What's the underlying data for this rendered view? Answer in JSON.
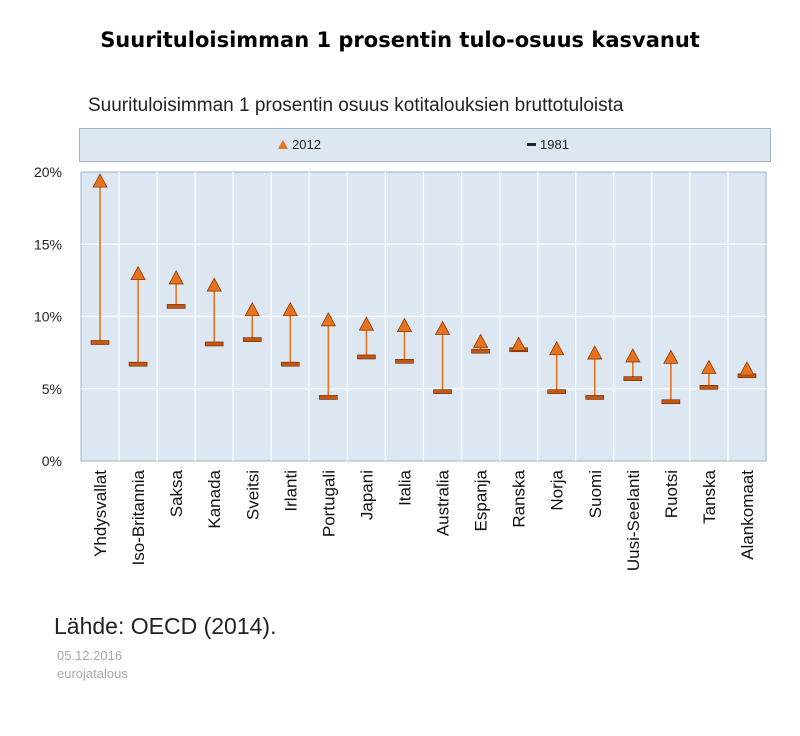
{
  "headline": "Suurituloisimman 1 prosentin tulo-osuus kasvanut",
  "source": "Lähde: OECD (2014).",
  "date": "05.12.2016",
  "site": "eurojatalous",
  "colors": {
    "marker_2012": "#e8731e",
    "line": "#e8731e",
    "marker_1981": "#c8560f",
    "plot_background": "#dde7f2",
    "grid": "#ffffff"
  },
  "chart_data": {
    "type": "dot-range",
    "title": "Suurituloisimman 1 prosentin osuus kotitalouksien bruttotuloista",
    "xlabel": "",
    "ylabel": "",
    "ylim": [
      0,
      0.2
    ],
    "yticks": [
      0,
      0.05,
      0.1,
      0.15,
      0.2
    ],
    "ytick_labels": [
      "0%",
      "5%",
      "10%",
      "15%",
      "20%"
    ],
    "grid": true,
    "legend_position": "top",
    "categories": [
      "Yhdysvallat",
      "Iso-Britannia",
      "Saksa",
      "Kanada",
      "Sveitsi",
      "Irlanti",
      "Portugali",
      "Japani",
      "Italia",
      "Australia",
      "Espanja",
      "Ranska",
      "Norja",
      "Suomi",
      "Uusi-Seelanti",
      "Ruotsi",
      "Tanska",
      "Alankomaat"
    ],
    "series": [
      {
        "name": "2012",
        "marker": "triangle",
        "values": [
          0.193,
          0.129,
          0.126,
          0.121,
          0.104,
          0.104,
          0.097,
          0.094,
          0.093,
          0.091,
          0.082,
          0.08,
          0.077,
          0.074,
          0.072,
          0.071,
          0.064,
          0.063
        ]
      },
      {
        "name": "1981",
        "marker": "dash",
        "values": [
          0.082,
          0.067,
          0.107,
          0.081,
          0.084,
          0.067,
          0.044,
          0.072,
          0.069,
          0.048,
          0.076,
          0.077,
          0.048,
          0.044,
          0.057,
          0.041,
          0.051,
          0.059
        ]
      }
    ]
  }
}
